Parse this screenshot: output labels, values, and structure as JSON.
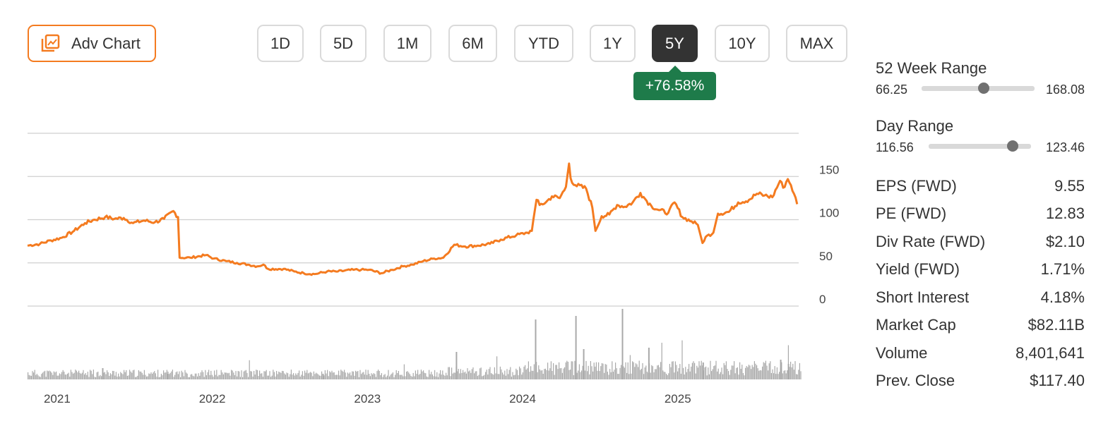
{
  "adv_chart_label": "Adv Chart",
  "time_ranges": [
    {
      "label": "1D",
      "active": false
    },
    {
      "label": "5D",
      "active": false
    },
    {
      "label": "1M",
      "active": false
    },
    {
      "label": "6M",
      "active": false
    },
    {
      "label": "YTD",
      "active": false
    },
    {
      "label": "1Y",
      "active": false
    },
    {
      "label": "5Y",
      "active": true
    },
    {
      "label": "10Y",
      "active": false
    },
    {
      "label": "MAX",
      "active": false
    }
  ],
  "change_badge": "+76.58%",
  "colors": {
    "price_line": "#f47b20",
    "volume": "#a9a9a9",
    "positive": "#1e7b4a",
    "active_button": "#333333",
    "accent": "#f47b20"
  },
  "stats": {
    "week52": {
      "title": "52 Week Range",
      "low": "66.25",
      "high": "168.08",
      "marker_fraction": 0.55
    },
    "day": {
      "title": "Day Range",
      "low": "116.56",
      "high": "123.46",
      "marker_fraction": 0.82
    },
    "rows": [
      {
        "label": "EPS (FWD)",
        "value": "9.55"
      },
      {
        "label": "PE (FWD)",
        "value": "12.83"
      },
      {
        "label": "Div Rate (FWD)",
        "value": "$2.10"
      },
      {
        "label": "Yield (FWD)",
        "value": "1.71%"
      },
      {
        "label": "Short Interest",
        "value": "4.18%"
      },
      {
        "label": "Market Cap",
        "value": "$82.11B"
      },
      {
        "label": "Volume",
        "value": "8,401,641"
      },
      {
        "label": "Prev. Close",
        "value": "$117.40"
      }
    ]
  },
  "chart_data": {
    "type": "line",
    "grid": true,
    "y_ticks": [
      0,
      50,
      100,
      150
    ],
    "ylim": [
      0,
      200
    ],
    "xlim": [
      2020.9,
      2025.87
    ],
    "x_tick_labels": [
      {
        "x": 2021,
        "label": "2021"
      },
      {
        "x": 2022,
        "label": "2022"
      },
      {
        "x": 2023,
        "label": "2023"
      },
      {
        "x": 2024,
        "label": "2024"
      },
      {
        "x": 2025,
        "label": "2025"
      }
    ],
    "series": [
      {
        "points": [
          [
            2020.9,
            70
          ],
          [
            2020.98,
            72
          ],
          [
            2021.05,
            76
          ],
          [
            2021.12,
            79
          ],
          [
            2021.2,
            87
          ],
          [
            2021.27,
            96
          ],
          [
            2021.33,
            100
          ],
          [
            2021.4,
            103
          ],
          [
            2021.46,
            101
          ],
          [
            2021.52,
            102
          ],
          [
            2021.58,
            96
          ],
          [
            2021.65,
            99
          ],
          [
            2021.72,
            97
          ],
          [
            2021.78,
            101
          ],
          [
            2021.84,
            110
          ],
          [
            2021.87,
            103
          ],
          [
            2021.88,
            56
          ],
          [
            2021.95,
            56
          ],
          [
            2022.05,
            59
          ],
          [
            2022.1,
            55
          ],
          [
            2022.18,
            52
          ],
          [
            2022.25,
            50
          ],
          [
            2022.32,
            48
          ],
          [
            2022.38,
            46
          ],
          [
            2022.42,
            48
          ],
          [
            2022.45,
            43
          ],
          [
            2022.55,
            43
          ],
          [
            2022.62,
            40
          ],
          [
            2022.68,
            38
          ],
          [
            2022.75,
            37
          ],
          [
            2022.83,
            40
          ],
          [
            2022.9,
            40
          ],
          [
            2023.0,
            42
          ],
          [
            2023.05,
            42
          ],
          [
            2023.1,
            42
          ],
          [
            2023.18,
            38
          ],
          [
            2023.25,
            42
          ],
          [
            2023.32,
            46
          ],
          [
            2023.38,
            48
          ],
          [
            2023.45,
            52
          ],
          [
            2023.52,
            55
          ],
          [
            2023.58,
            56
          ],
          [
            2023.65,
            71
          ],
          [
            2023.72,
            69
          ],
          [
            2023.8,
            70
          ],
          [
            2023.88,
            72
          ],
          [
            2023.95,
            77
          ],
          [
            2024.05,
            82
          ],
          [
            2024.12,
            85
          ],
          [
            2024.15,
            87
          ],
          [
            2024.16,
            100
          ],
          [
            2024.18,
            123
          ],
          [
            2024.2,
            117
          ],
          [
            2024.24,
            120
          ],
          [
            2024.28,
            127
          ],
          [
            2024.33,
            125
          ],
          [
            2024.37,
            138
          ],
          [
            2024.39,
            165
          ],
          [
            2024.4,
            148
          ],
          [
            2024.43,
            140
          ],
          [
            2024.5,
            136
          ],
          [
            2024.54,
            114
          ],
          [
            2024.56,
            87
          ],
          [
            2024.6,
            104
          ],
          [
            2024.65,
            106
          ],
          [
            2024.7,
            117
          ],
          [
            2024.75,
            115
          ],
          [
            2024.8,
            120
          ],
          [
            2024.85,
            131
          ],
          [
            2024.88,
            124
          ],
          [
            2024.92,
            116
          ],
          [
            2024.97,
            111
          ],
          [
            2025.03,
            108
          ],
          [
            2025.07,
            120
          ],
          [
            2025.12,
            103
          ],
          [
            2025.18,
            98
          ],
          [
            2025.22,
            94
          ],
          [
            2025.25,
            73
          ],
          [
            2025.27,
            80
          ],
          [
            2025.32,
            85
          ],
          [
            2025.35,
            107
          ],
          [
            2025.42,
            109
          ],
          [
            2025.48,
            120
          ],
          [
            2025.55,
            123
          ],
          [
            2025.6,
            130
          ],
          [
            2025.65,
            128
          ],
          [
            2025.7,
            126
          ],
          [
            2025.75,
            145
          ],
          [
            2025.77,
            137
          ],
          [
            2025.8,
            147
          ],
          [
            2025.82,
            140
          ],
          [
            2025.84,
            130
          ],
          [
            2025.86,
            118
          ]
        ]
      }
    ],
    "volume": {
      "baseline": 0.1,
      "spikes": [
        [
          2021.38,
          0.16
        ],
        [
          2021.8,
          0.08
        ],
        [
          2022.8,
          0.08
        ],
        [
          2023.66,
          0.39
        ],
        [
          2024.17,
          0.85
        ],
        [
          2024.43,
          0.9
        ],
        [
          2024.48,
          0.43
        ],
        [
          2024.73,
          1.0
        ],
        [
          2024.9,
          0.45
        ],
        [
          2025.25,
          0.24
        ],
        [
          2025.75,
          0.28
        ],
        [
          2025.8,
          0.22
        ]
      ]
    }
  }
}
